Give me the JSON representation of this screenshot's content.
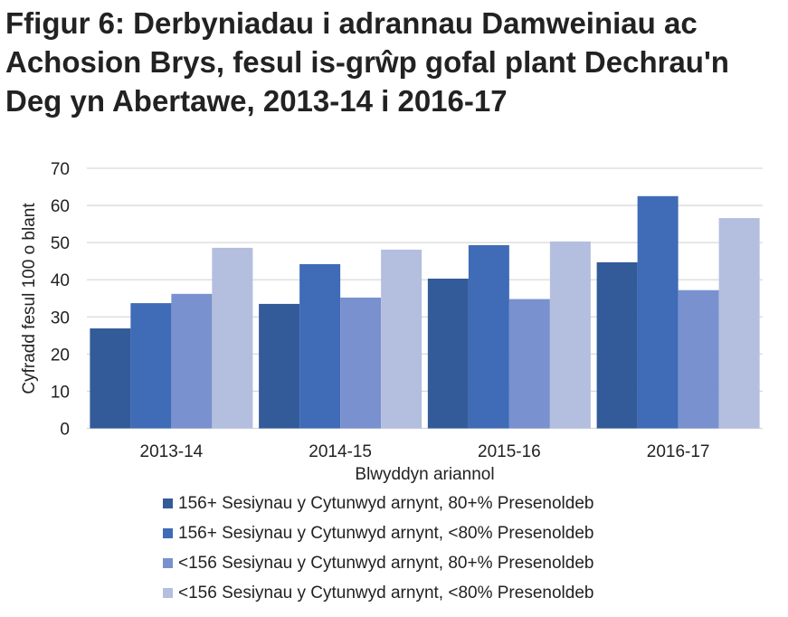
{
  "chart_data": {
    "type": "bar",
    "title": "Ffigur 6: Derbyniadau i adrannau Damweiniau ac Achosion Brys, fesul is-grŵp gofal plant Dechrau'n Deg yn Abertawe, 2013-14 i 2016-17",
    "xlabel": "Blwyddyn ariannol",
    "ylabel": "Cyfradd fesul 100 o blant",
    "ylim": [
      0,
      70
    ],
    "yticks": [
      "0",
      "10",
      "20",
      "30",
      "40",
      "50",
      "60",
      "70"
    ],
    "grid": true,
    "legend_position": "bottom",
    "categories": [
      "2013-14",
      "2014-15",
      "2015-16",
      "2016-17"
    ],
    "series": [
      {
        "name": "156+ Sesiynau y Cytunwyd arnynt, 80+% Presenoldeb",
        "color": "#335A99",
        "values": [
          26.9,
          33.5,
          40.3,
          44.7
        ]
      },
      {
        "name": "156+ Sesiynau y Cytunwyd arnynt, <80% Presenoldeb",
        "color": "#3F6BB7",
        "values": [
          33.7,
          44.2,
          49.3,
          62.5
        ]
      },
      {
        "name": "<156 Sesiynau y Cytunwyd arnynt, 80+% Presenoldeb",
        "color": "#7991CE",
        "values": [
          36.2,
          35.2,
          34.8,
          37.2
        ]
      },
      {
        "name": "<156 Sesiynau y Cytunwyd arnynt, <80% Presenoldeb",
        "color": "#B4BEDF",
        "values": [
          48.6,
          48.1,
          50.3,
          56.6
        ]
      }
    ]
  }
}
